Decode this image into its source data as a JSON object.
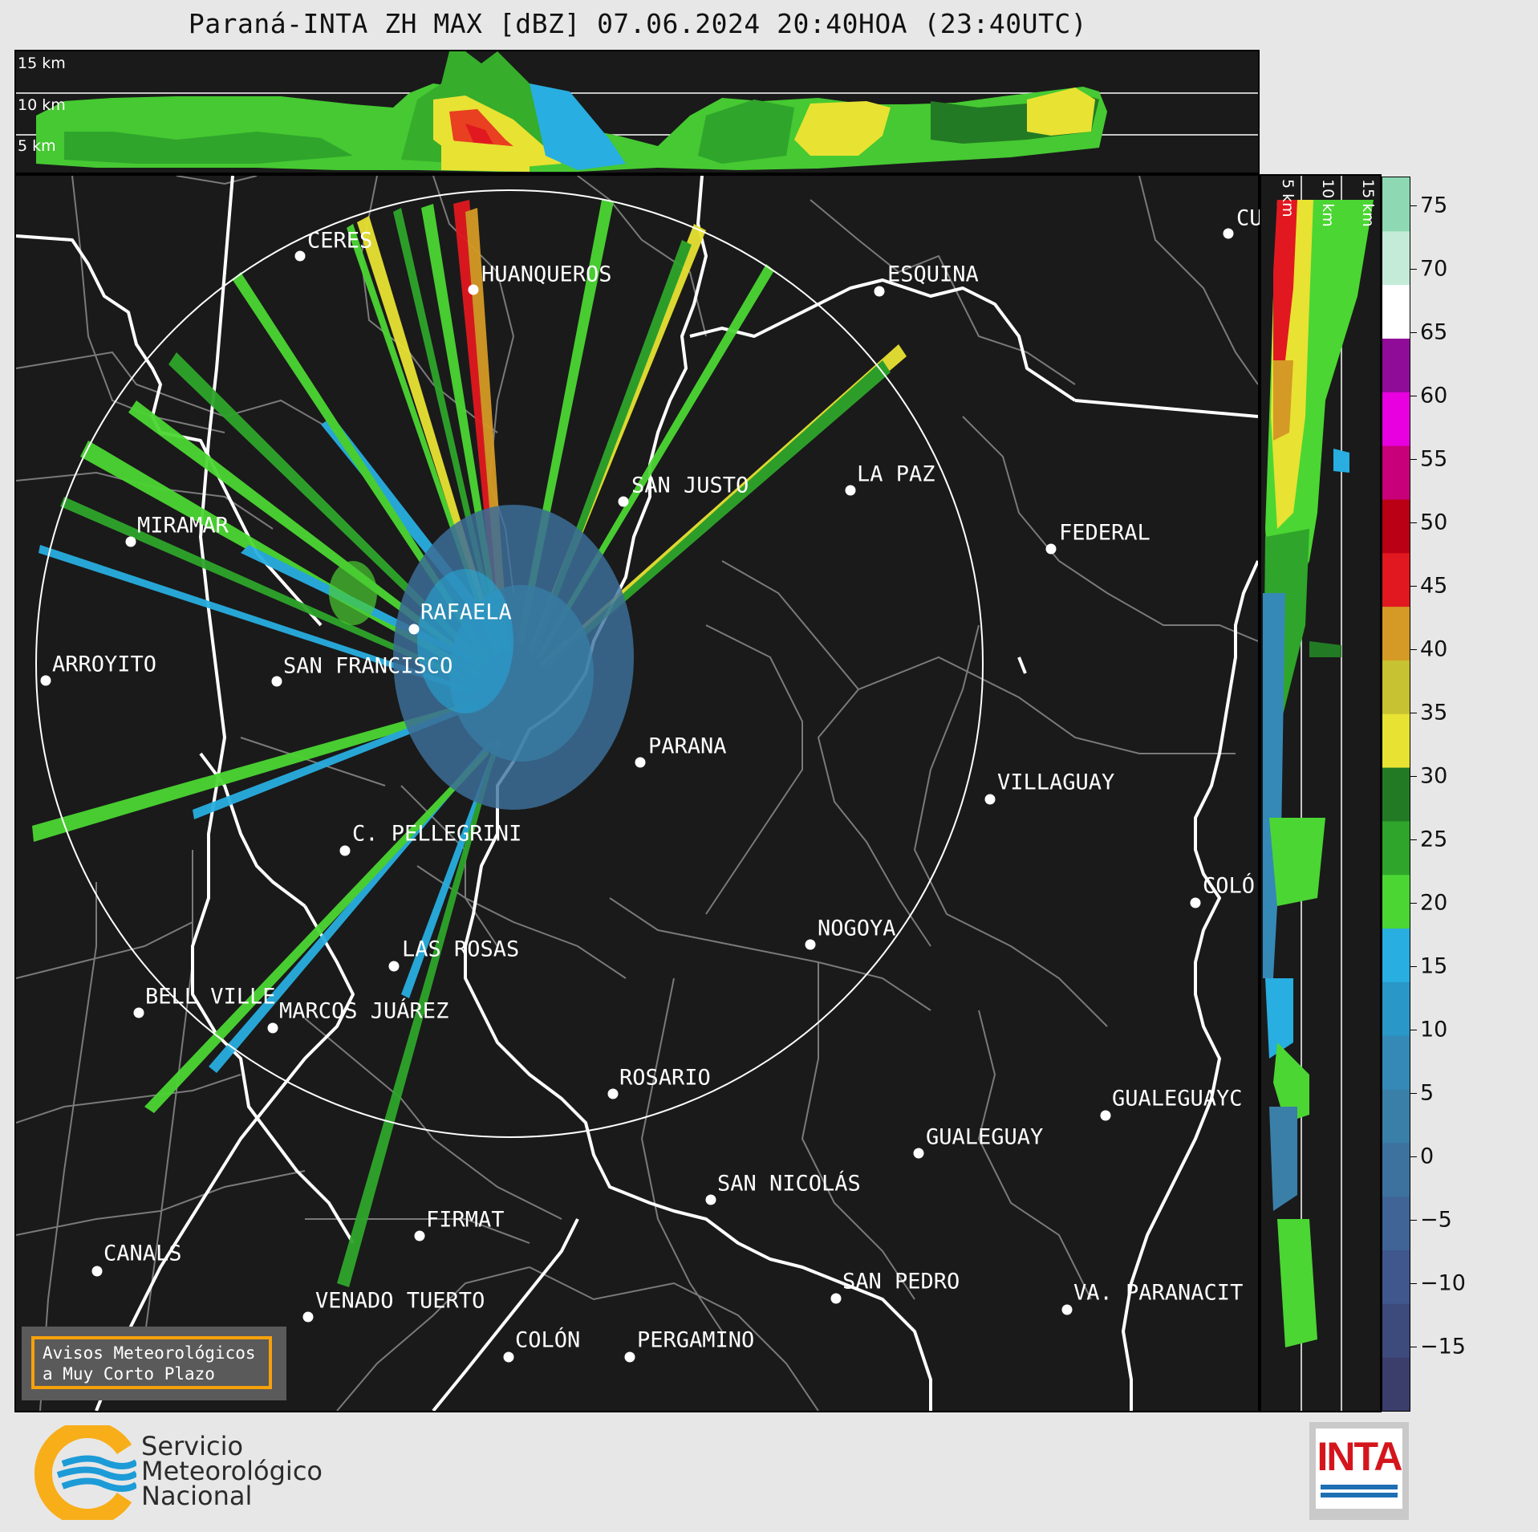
{
  "title": "Paraná-INTA ZH MAX [dBZ] 07.06.2024 20:40HOA (23:40UTC)",
  "top_panel": {
    "height_labels": [
      "15 km",
      "10 km",
      "5 km"
    ]
  },
  "side_panel": {
    "height_labels": [
      "5 km",
      "10 km",
      "15 km"
    ]
  },
  "colorbar": {
    "unit": "dBZ",
    "ticks": [
      "75",
      "70",
      "65",
      "60",
      "55",
      "50",
      "45",
      "40",
      "35",
      "30",
      "25",
      "20",
      "15",
      "10",
      "5",
      "0",
      "−5",
      "−10",
      "−15"
    ],
    "colors": [
      "#3b3d6b",
      "#3d4a7c",
      "#3f578d",
      "#3f6495",
      "#3d729e",
      "#3a7fa8",
      "#3589b6",
      "#2a97c9",
      "#28aee0",
      "#4bd633",
      "#2fa52b",
      "#237a24",
      "#e8e233",
      "#c7c232",
      "#d49a25",
      "#e1181f",
      "#b90015",
      "#c8007a",
      "#e800e0",
      "#8f0c98",
      "#ffffff",
      "#c3ebd8",
      "#8ed9b4"
    ]
  },
  "cities": [
    {
      "name": "CERES"
    },
    {
      "name": "HUANQUEROS"
    },
    {
      "name": "ESQUINA"
    },
    {
      "name": "CU"
    },
    {
      "name": "SAN JUSTO"
    },
    {
      "name": "LA PAZ"
    },
    {
      "name": "MIRAMAR"
    },
    {
      "name": "FEDERAL"
    },
    {
      "name": "RAFAELA"
    },
    {
      "name": "ARROYITO"
    },
    {
      "name": "SAN FRANCISCO"
    },
    {
      "name": "PARANA"
    },
    {
      "name": "VILLAGUAY"
    },
    {
      "name": "C. PELLEGRINI"
    },
    {
      "name": "COLÓ"
    },
    {
      "name": "NOGOYA"
    },
    {
      "name": "LAS ROSAS"
    },
    {
      "name": "BELL VILLE"
    },
    {
      "name": "MARCOS JUÁREZ"
    },
    {
      "name": "ROSARIO"
    },
    {
      "name": "GUALEGUAYC"
    },
    {
      "name": "GUALEGUAY"
    },
    {
      "name": "SAN NICOLÁS"
    },
    {
      "name": "FIRMAT"
    },
    {
      "name": "CANALS"
    },
    {
      "name": "SAN PEDRO"
    },
    {
      "name": "VENADO TUERTO"
    },
    {
      "name": "VA. PARANACIT"
    },
    {
      "name": "COLÓN"
    },
    {
      "name": "PERGAMINO"
    }
  ],
  "warning": {
    "line1": "Avisos Meteorológicos",
    "line2": "a Muy Corto Plazo"
  },
  "smn_logo": {
    "line1": "Servicio",
    "line2": "Meteorológico",
    "line3": "Nacional"
  },
  "inta_logo": {
    "text": "INTA"
  },
  "accent_colors": {
    "smn_orange": "#f8ae19",
    "smn_blue": "#1d9bd7",
    "inta_red": "#d4161c",
    "warning_border": "#f6a10a"
  }
}
